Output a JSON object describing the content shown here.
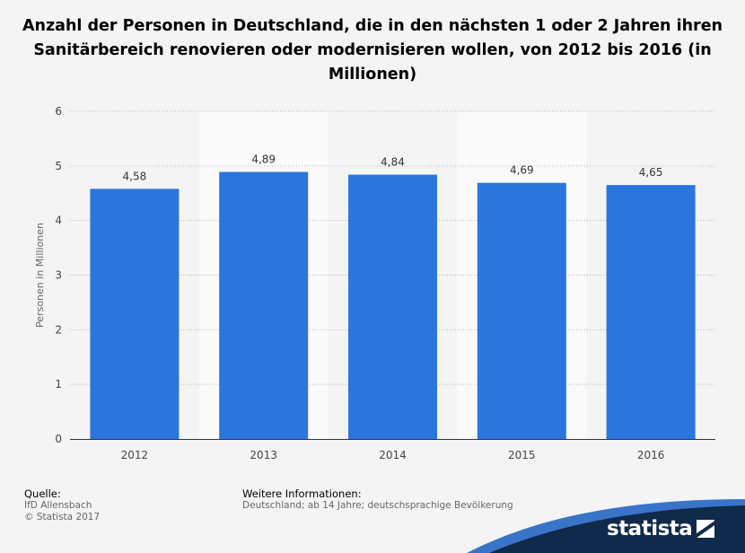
{
  "chart_data": {
    "type": "bar",
    "title": "Anzahl der Personen in Deutschland, die in den nächsten 1 oder 2 Jahren ihren Sanitärbereich renovieren oder modernisieren wollen, von 2012 bis 2016 (in Millionen)",
    "xlabel": "",
    "ylabel": "Personen in Millionen",
    "categories": [
      "2012",
      "2013",
      "2014",
      "2015",
      "2016"
    ],
    "values": [
      4.58,
      4.89,
      4.84,
      4.69,
      4.65
    ],
    "value_labels": [
      "4,58",
      "4,89",
      "4,84",
      "4,69",
      "4,65"
    ],
    "ylim": [
      0,
      6
    ],
    "yticks": [
      "0",
      "1",
      "2",
      "3",
      "4",
      "5",
      "6"
    ],
    "grid": true,
    "bar_color": "#2a76dd",
    "band_color": "#fafafa"
  },
  "footer": {
    "source_label": "Quelle:",
    "source_lines": [
      "IfD Allensbach",
      "© Statista 2017"
    ],
    "info_label": "Weitere Informationen:",
    "info_text": "Deutschland; ab 14 Jahre; deutschsprachige Bevölkerung"
  },
  "logo": {
    "text": "statista",
    "icon": "statista-logo-icon",
    "color": "#0f2a4a"
  }
}
